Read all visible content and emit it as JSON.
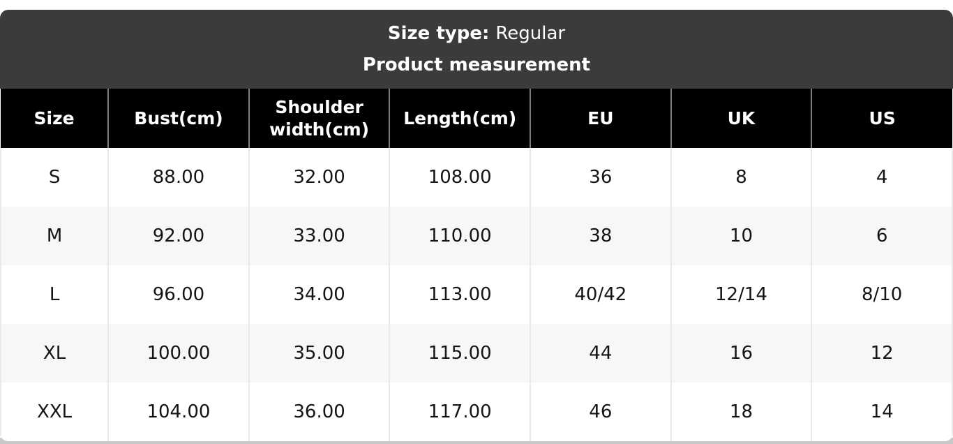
{
  "header": {
    "size_type_label": "Size type:",
    "size_type_value": "Regular",
    "title": "Product measurement"
  },
  "table": {
    "columns": [
      "Size",
      "Bust(cm)",
      "Shoulder width(cm)",
      "Length(cm)",
      "EU",
      "UK",
      "US"
    ],
    "rows": [
      [
        "S",
        "88.00",
        "32.00",
        "108.00",
        "36",
        "8",
        "4"
      ],
      [
        "M",
        "92.00",
        "33.00",
        "110.00",
        "38",
        "10",
        "6"
      ],
      [
        "L",
        "96.00",
        "34.00",
        "113.00",
        "40/42",
        "12/14",
        "8/10"
      ],
      [
        "XL",
        "100.00",
        "35.00",
        "115.00",
        "44",
        "16",
        "12"
      ],
      [
        "XXL",
        "104.00",
        "36.00",
        "117.00",
        "46",
        "18",
        "14"
      ]
    ]
  },
  "colors": {
    "title_bar_bg": "#3b3b3b",
    "column_header_bg": "#000000",
    "text_on_dark": "#ffffff",
    "body_text": "#141414",
    "row_alt_bg": "#f7f7f7",
    "cell_separator": "#e9e9e9",
    "header_separator": "#7d7d7d",
    "bottom_strip": "#c8c8c8"
  }
}
